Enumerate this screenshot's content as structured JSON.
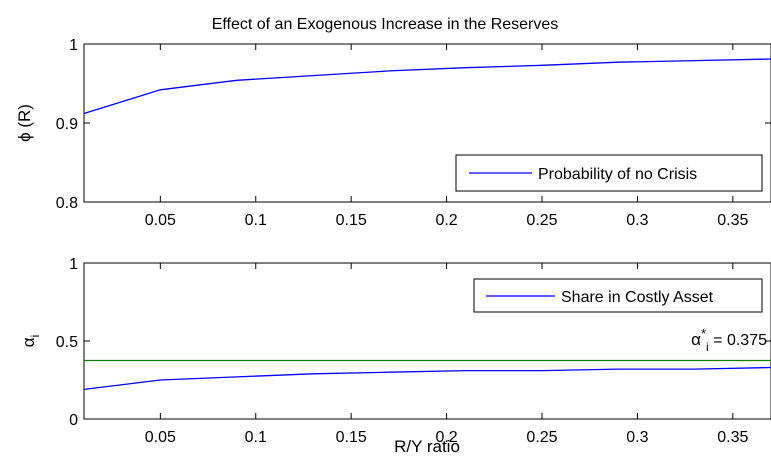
{
  "title": "Effect of an Exogenous Increase in the Reserves",
  "xlabel": "R/Y ratio",
  "chart_data": [
    {
      "type": "line",
      "ylabel": "ϕ (R)",
      "xlim": [
        0.01,
        0.37
      ],
      "ylim": [
        0.8,
        1.0
      ],
      "xticks": [
        0.05,
        0.1,
        0.15,
        0.2,
        0.25,
        0.3,
        0.35
      ],
      "xtick_labels": [
        "0.05",
        "0.1",
        "0.15",
        "0.2",
        "0.25",
        "0.3",
        "0.35"
      ],
      "yticks": [
        0.8,
        0.9,
        1.0
      ],
      "ytick_labels": [
        "0.8",
        "0.9",
        "1"
      ],
      "legend_position": "bottom-right",
      "series": [
        {
          "name": "Probability of no Crisis",
          "color": "#0000ff",
          "x": [
            0.01,
            0.05,
            0.09,
            0.13,
            0.17,
            0.21,
            0.25,
            0.29,
            0.33,
            0.37
          ],
          "y": [
            0.912,
            0.942,
            0.954,
            0.96,
            0.966,
            0.97,
            0.973,
            0.977,
            0.979,
            0.981
          ]
        }
      ]
    },
    {
      "type": "line",
      "ylabel": "α",
      "ylabel_sub": "i",
      "xlim": [
        0.01,
        0.37
      ],
      "ylim": [
        0,
        1
      ],
      "xticks": [
        0.05,
        0.1,
        0.15,
        0.2,
        0.25,
        0.3,
        0.35
      ],
      "xtick_labels": [
        "0.05",
        "0.1",
        "0.15",
        "0.2",
        "0.25",
        "0.3",
        "0.35"
      ],
      "yticks": [
        0,
        0.5,
        1
      ],
      "ytick_labels": [
        "0",
        "0.5",
        "1"
      ],
      "legend_position": "top-right",
      "series": [
        {
          "name": "Share in Costly Asset",
          "color": "#0000ff",
          "x": [
            0.01,
            0.05,
            0.09,
            0.13,
            0.17,
            0.21,
            0.25,
            0.29,
            0.33,
            0.37
          ],
          "y": [
            0.19,
            0.25,
            0.27,
            0.29,
            0.3,
            0.31,
            0.31,
            0.32,
            0.32,
            0.33
          ]
        },
        {
          "color": "#008000",
          "x": [
            0.01,
            0.37
          ],
          "y": [
            0.375,
            0.375
          ]
        }
      ],
      "annotation": {
        "alpha": "α",
        "star": "*",
        "sub": "i",
        "rest": " = 0.375",
        "x": 0.335,
        "y": 0.375
      }
    }
  ]
}
